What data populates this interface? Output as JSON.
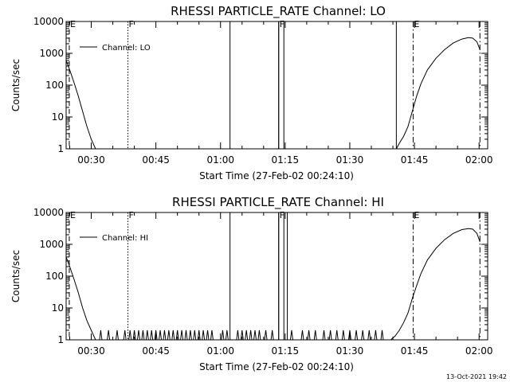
{
  "timestamp": "13-Oct-2021 19:42",
  "chart_data": [
    {
      "type": "line",
      "title": "RHESSI PARTICLE_RATE Channel: LO",
      "xlabel": "Start Time (27-Feb-02 00:24:10)",
      "ylabel": "Counts/sec",
      "x_unit": "minutes since 00:00 UT",
      "xlim": [
        24.17,
        122
      ],
      "ylim": [
        1,
        10000
      ],
      "yscale": "log",
      "x_ticks": [
        {
          "value": 30,
          "label": "00:30"
        },
        {
          "value": 45,
          "label": "00:45"
        },
        {
          "value": 60,
          "label": "01:00"
        },
        {
          "value": 75,
          "label": "01:15"
        },
        {
          "value": 90,
          "label": "01:30"
        },
        {
          "value": 105,
          "label": "01:45"
        },
        {
          "value": 120,
          "label": "02:00"
        }
      ],
      "y_ticks": [
        {
          "value": 1,
          "label": "1"
        },
        {
          "value": 10,
          "label": "10"
        },
        {
          "value": 100,
          "label": "100"
        },
        {
          "value": 1000,
          "label": "1000"
        },
        {
          "value": 10000,
          "label": "10000"
        }
      ],
      "legend": {
        "entry": "Channel: LO",
        "placement": "top-left"
      },
      "series": [
        {
          "name": "Channel: LO",
          "points": [
            [
              24.17,
              600
            ],
            [
              25.0,
              300
            ],
            [
              26.0,
              120
            ],
            [
              27.0,
              45
            ],
            [
              28.0,
              15
            ],
            [
              29.0,
              5
            ],
            [
              30.0,
              2
            ],
            [
              31.0,
              1
            ]
          ],
          "tail": [
            [
              100.8,
              1
            ],
            [
              101.5,
              1.5
            ],
            [
              102.5,
              2.5
            ],
            [
              103.5,
              5
            ],
            [
              104.5,
              15
            ],
            [
              105.5,
              45
            ],
            [
              106.5,
              110
            ],
            [
              108.0,
              300
            ],
            [
              110.0,
              700
            ],
            [
              112.0,
              1300
            ],
            [
              114.0,
              2100
            ],
            [
              116.0,
              2800
            ],
            [
              117.5,
              3100
            ],
            [
              118.5,
              3000
            ],
            [
              119.5,
              2300
            ],
            [
              120.2,
              1300
            ]
          ]
        }
      ],
      "gaps": [
        [
          62.2,
          73.5
        ],
        [
          74.7,
          100.8
        ]
      ],
      "markers": [
        {
          "label": "E",
          "x": 24.9,
          "style": "dashed"
        },
        {
          "label": "F",
          "x": 38.5,
          "style": "dotted"
        },
        {
          "label": "F",
          "x": 73.5,
          "style": "solid"
        },
        {
          "label": "E",
          "x": 104.7,
          "style": "dashdot"
        },
        {
          "label": "",
          "x": 120.2,
          "style": "dashdot"
        }
      ]
    },
    {
      "type": "line",
      "title": "RHESSI PARTICLE_RATE Channel: HI",
      "xlabel": "Start Time (27-Feb-02 00:24:10)",
      "ylabel": "Counts/sec",
      "x_unit": "minutes since 00:00 UT",
      "xlim": [
        24.17,
        122
      ],
      "ylim": [
        1,
        10000
      ],
      "yscale": "log",
      "x_ticks": [
        {
          "value": 30,
          "label": "00:30"
        },
        {
          "value": 45,
          "label": "00:45"
        },
        {
          "value": 60,
          "label": "01:00"
        },
        {
          "value": 75,
          "label": "01:15"
        },
        {
          "value": 90,
          "label": "01:30"
        },
        {
          "value": 105,
          "label": "01:45"
        },
        {
          "value": 120,
          "label": "02:00"
        }
      ],
      "y_ticks": [
        {
          "value": 1,
          "label": "1"
        },
        {
          "value": 10,
          "label": "10"
        },
        {
          "value": 100,
          "label": "100"
        },
        {
          "value": 1000,
          "label": "1000"
        },
        {
          "value": 10000,
          "label": "10000"
        }
      ],
      "legend": {
        "entry": "Channel: HI",
        "placement": "top-left"
      },
      "series": [
        {
          "name": "Channel: HI",
          "points": [
            [
              24.17,
              400
            ],
            [
              25.0,
              200
            ],
            [
              26.0,
              80
            ],
            [
              27.0,
              30
            ],
            [
              28.0,
              10
            ],
            [
              29.0,
              4
            ],
            [
              30.0,
              2
            ],
            [
              31.0,
              1
            ]
          ],
          "tail": [
            [
              99.5,
              1
            ],
            [
              100.5,
              1.3
            ],
            [
              101.5,
              2
            ],
            [
              102.5,
              3.5
            ],
            [
              103.5,
              7
            ],
            [
              104.5,
              20
            ],
            [
              105.5,
              50
            ],
            [
              106.5,
              120
            ],
            [
              108.0,
              320
            ],
            [
              110.0,
              750
            ],
            [
              112.0,
              1400
            ],
            [
              114.0,
              2200
            ],
            [
              116.0,
              2900
            ],
            [
              117.5,
              3100
            ],
            [
              118.5,
              3000
            ],
            [
              119.5,
              2200
            ],
            [
              120.2,
              1200
            ]
          ]
        }
      ],
      "spikes": [
        32.2,
        34.0,
        36.0,
        37.8,
        39.0,
        40.0,
        41.0,
        42.0,
        43.0,
        44.0,
        45.0,
        46.0,
        47.0,
        48.0,
        49.0,
        50.0,
        51.0,
        52.0,
        53.0,
        54.0,
        55.0,
        56.0,
        57.0,
        58.0,
        60.5,
        61.5,
        64.0,
        65.0,
        66.0,
        67.0,
        68.0,
        69.0,
        70.5,
        72.0,
        76.5,
        79.0,
        80.5,
        82.0,
        84.0,
        85.5,
        87.0,
        88.5,
        90.0,
        91.5,
        93.0,
        94.5,
        96.0,
        97.5
      ],
      "gaps": [
        [
          62.2,
          73.5
        ],
        [
          74.7,
          75.5
        ]
      ],
      "markers": [
        {
          "label": "E",
          "x": 24.9,
          "style": "dashed"
        },
        {
          "label": "F",
          "x": 38.5,
          "style": "dotted"
        },
        {
          "label": "F",
          "x": 73.5,
          "style": "solid"
        },
        {
          "label": "E",
          "x": 104.7,
          "style": "dashdot"
        },
        {
          "label": "",
          "x": 120.2,
          "style": "dashdot"
        }
      ]
    }
  ]
}
